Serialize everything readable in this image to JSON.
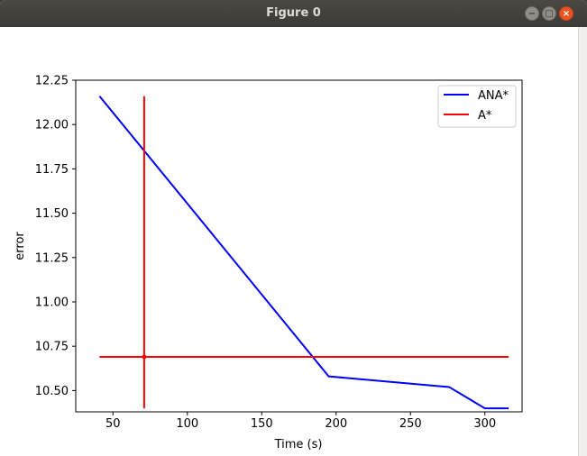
{
  "window": {
    "title": "Figure 0",
    "buttons": {
      "minimize": "−",
      "maximize": "□",
      "close": "×"
    }
  },
  "chart_data": {
    "type": "line",
    "title": "",
    "xlabel": "Time (s)",
    "ylabel": "error",
    "xlim": [
      25,
      325
    ],
    "ylim": [
      10.38,
      12.25
    ],
    "xticks": [
      50,
      100,
      150,
      200,
      250,
      300
    ],
    "yticks": [
      10.5,
      10.75,
      11.0,
      11.25,
      11.5,
      11.75,
      12.0,
      12.25
    ],
    "xtick_labels": [
      "50",
      "100",
      "150",
      "200",
      "250",
      "300"
    ],
    "ytick_labels": [
      "10.50",
      "10.75",
      "11.00",
      "11.25",
      "11.50",
      "11.75",
      "12.00",
      "12.25"
    ],
    "grid": false,
    "legend_position": "upper right",
    "series": [
      {
        "name": "ANA*",
        "color": "#0000ff",
        "x": [
          41,
          195,
          276,
          300,
          316
        ],
        "y": [
          12.16,
          10.58,
          10.52,
          10.4,
          10.4
        ]
      },
      {
        "name": "A*",
        "color": "#ff0000",
        "crosshair": {
          "vertical_x": 71,
          "vertical_y_range": [
            10.4,
            12.16
          ],
          "horizontal_y": 10.69,
          "horizontal_x_range": [
            41,
            316
          ],
          "marker": [
            71,
            10.69
          ]
        }
      }
    ]
  }
}
